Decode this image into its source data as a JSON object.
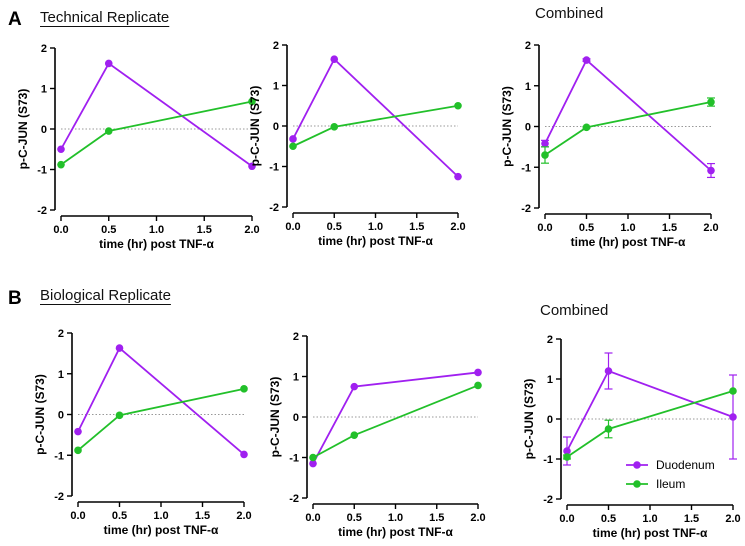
{
  "figure": {
    "section_a": {
      "letter": "A",
      "title": "Technical Replicate"
    },
    "section_b": {
      "letter": "B",
      "title": "Biological Replicate"
    }
  },
  "colors": {
    "duodenum": "#a020f0",
    "ileum": "#22c02a",
    "zero_line": "#777777",
    "axis": "#000000"
  },
  "chart_data": [
    {
      "type": "line",
      "row": "A",
      "col": 1,
      "title": "",
      "xlabel": "time (hr) post TNF-α",
      "ylabel": "p-C-JUN (S73)",
      "xlim": [
        0,
        2
      ],
      "ylim": [
        -2,
        2
      ],
      "xticks": [
        "0.0",
        "0.5",
        "1.0",
        "1.5",
        "2.0"
      ],
      "yticks": [
        "-2",
        "-1",
        "0",
        "1",
        "2"
      ],
      "x": [
        0,
        0.5,
        2
      ],
      "series": [
        {
          "key": "duodenum",
          "values": [
            -0.5,
            1.62,
            -0.92
          ]
        },
        {
          "key": "ileum",
          "values": [
            -0.88,
            -0.05,
            0.68
          ]
        }
      ]
    },
    {
      "type": "line",
      "row": "A",
      "col": 2,
      "title": "",
      "xlabel": "time (hr) post TNF-α",
      "ylabel": "p-C-JUN (S73)",
      "xlim": [
        0,
        2
      ],
      "ylim": [
        -2,
        2
      ],
      "xticks": [
        "0.0",
        "0.5",
        "1.0",
        "1.5",
        "2.0"
      ],
      "yticks": [
        "-2",
        "-1",
        "0",
        "1",
        "2"
      ],
      "x": [
        0,
        0.5,
        2
      ],
      "series": [
        {
          "key": "duodenum",
          "values": [
            -0.32,
            1.65,
            -1.25
          ]
        },
        {
          "key": "ileum",
          "values": [
            -0.5,
            -0.02,
            0.5
          ]
        }
      ]
    },
    {
      "type": "line",
      "row": "A",
      "col": 3,
      "title": "Combined",
      "xlabel": "time (hr) post TNF-α",
      "ylabel": "p-C-JUN (S73)",
      "xlim": [
        0,
        2
      ],
      "ylim": [
        -2,
        2
      ],
      "xticks": [
        "0.0",
        "0.5",
        "1.0",
        "1.5",
        "2.0"
      ],
      "yticks": [
        "-2",
        "-1",
        "0",
        "1",
        "2"
      ],
      "x": [
        0,
        0.5,
        2
      ],
      "series": [
        {
          "key": "duodenum",
          "values": [
            -0.42,
            1.63,
            -1.08
          ],
          "err": [
            0.08,
            0.03,
            0.17
          ]
        },
        {
          "key": "ileum",
          "values": [
            -0.7,
            -0.02,
            0.6
          ],
          "err": [
            0.2,
            0.02,
            0.1
          ]
        }
      ]
    },
    {
      "type": "line",
      "row": "B",
      "col": 1,
      "title": "",
      "xlabel": "time (hr) post TNF-α",
      "ylabel": "p-C-JUN (S73)",
      "xlim": [
        0,
        2
      ],
      "ylim": [
        -2,
        2
      ],
      "xticks": [
        "0.0",
        "0.5",
        "1.0",
        "1.5",
        "2.0"
      ],
      "yticks": [
        "-2",
        "-1",
        "0",
        "1",
        "2"
      ],
      "x": [
        0,
        0.5,
        2
      ],
      "series": [
        {
          "key": "duodenum",
          "values": [
            -0.42,
            1.63,
            -0.98
          ]
        },
        {
          "key": "ileum",
          "values": [
            -0.88,
            -0.02,
            0.63
          ]
        }
      ]
    },
    {
      "type": "line",
      "row": "B",
      "col": 2,
      "title": "",
      "xlabel": "time (hr) post TNF-α",
      "ylabel": "p-C-JUN (S73)",
      "xlim": [
        0,
        2
      ],
      "ylim": [
        -2,
        2
      ],
      "xticks": [
        "0.0",
        "0.5",
        "1.0",
        "1.5",
        "2.0"
      ],
      "yticks": [
        "-2",
        "-1",
        "0",
        "1",
        "2"
      ],
      "x": [
        0,
        0.5,
        2
      ],
      "series": [
        {
          "key": "duodenum",
          "values": [
            -1.15,
            0.75,
            1.1
          ]
        },
        {
          "key": "ileum",
          "values": [
            -1.0,
            -0.45,
            0.78
          ]
        }
      ]
    },
    {
      "type": "line",
      "row": "B",
      "col": 3,
      "title": "Combined",
      "xlabel": "time (hr) post TNF-α",
      "ylabel": "p-C-JUN (S73)",
      "xlim": [
        0,
        2
      ],
      "ylim": [
        -2,
        2
      ],
      "xticks": [
        "0.0",
        "0.5",
        "1.0",
        "1.5",
        "2.0"
      ],
      "yticks": [
        "-2",
        "-1",
        "0",
        "1",
        "2"
      ],
      "x": [
        0,
        0.5,
        2
      ],
      "series": [
        {
          "key": "duodenum",
          "name": "Duodenum",
          "values": [
            -0.8,
            1.2,
            0.05
          ],
          "err": [
            0.35,
            0.45,
            1.05
          ]
        },
        {
          "key": "ileum",
          "name": "Ileum",
          "values": [
            -0.95,
            -0.25,
            0.7
          ],
          "err": [
            0.05,
            0.22,
            0.0
          ]
        }
      ],
      "legend": {
        "position": "bottom-right",
        "entries": [
          "Duodenum",
          "Ileum"
        ]
      }
    }
  ]
}
